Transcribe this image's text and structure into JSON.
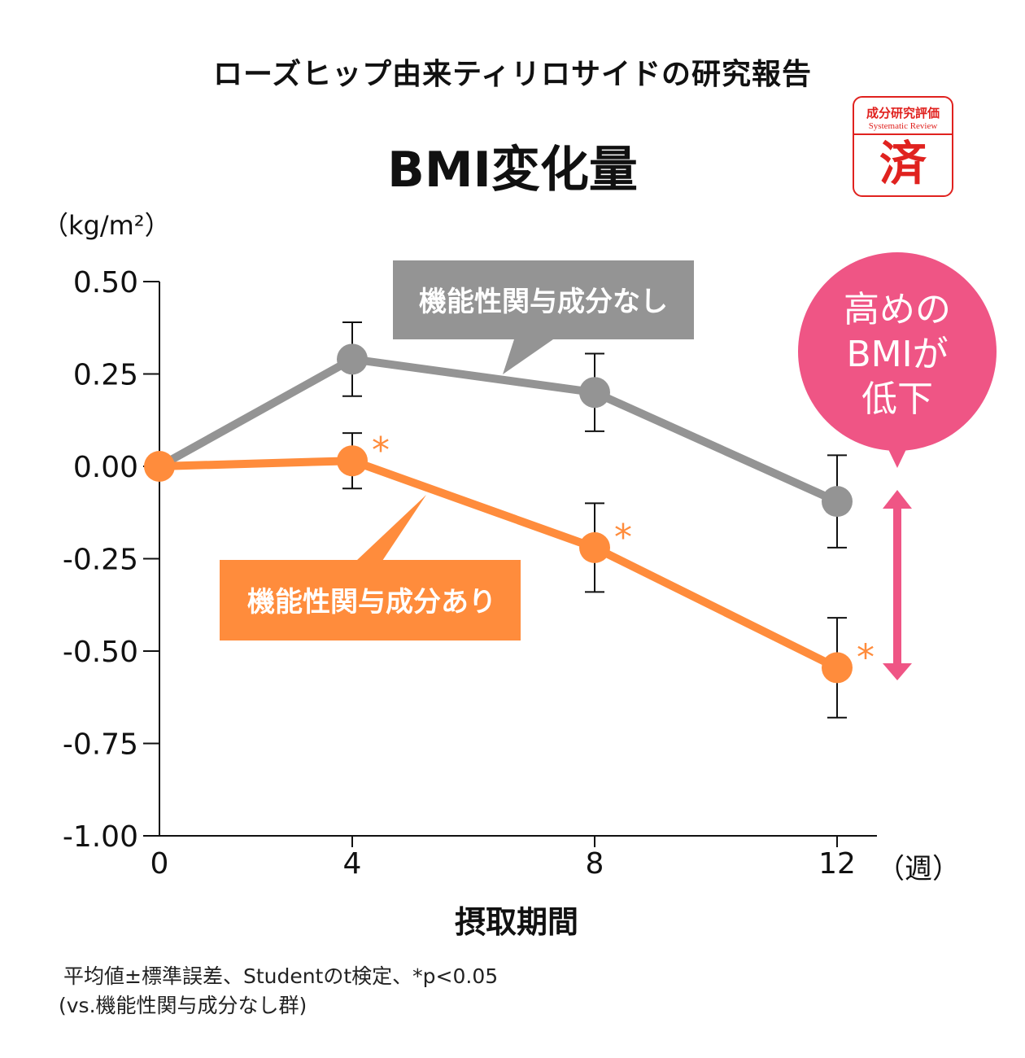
{
  "chart_data": {
    "type": "line",
    "subtitle": "ローズヒップ由来ティリロサイドの研究報告",
    "title": "BMI変化量",
    "ylabel": "（kg/m²）",
    "xlabel": "摂取期間",
    "xunit": "（週）",
    "x": [
      0,
      4,
      8,
      12
    ],
    "xticks": [
      "0",
      "4",
      "8",
      "12"
    ],
    "yticks": [
      "0.50",
      "0.25",
      "0.00",
      "-0.25",
      "-0.50",
      "-0.75",
      "-1.00"
    ],
    "ylim": [
      -1.0,
      0.5
    ],
    "series": [
      {
        "name": "機能性関与成分なし",
        "color": "#949494",
        "values": [
          0,
          0.29,
          0.2,
          -0.095
        ],
        "errors": [
          0,
          0.1,
          0.105,
          0.125
        ],
        "significant": [
          false,
          false,
          false,
          false
        ]
      },
      {
        "name": "機能性関与成分あり",
        "color": "#ff8c3c",
        "values": [
          0,
          0.015,
          -0.22,
          -0.545
        ],
        "errors": [
          0,
          0.075,
          0.12,
          0.135
        ],
        "significant": [
          false,
          true,
          true,
          true
        ]
      }
    ],
    "significance_mark": "*",
    "callout": {
      "lines": [
        "高めの",
        "BMIが",
        "低下"
      ],
      "color": "#ef5585"
    },
    "notes": [
      "平均値±標準誤差、Studentのt検定、*p<0.05",
      "(vs.機能性関与成分なし群)"
    ]
  },
  "stamp": {
    "line1": "成分研究評価",
    "line2": "Systematic Review",
    "mark": "済"
  }
}
